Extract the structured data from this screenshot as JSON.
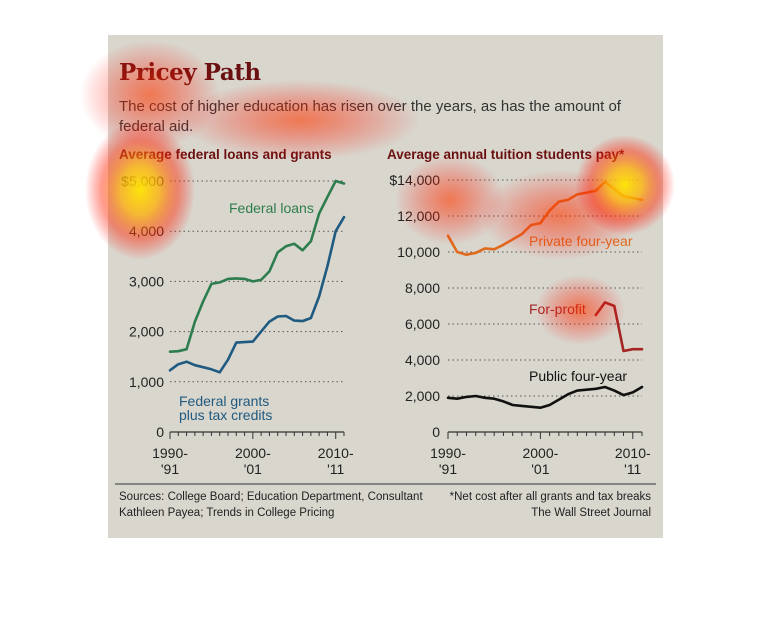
{
  "header": {
    "title": "Pricey Path",
    "subtitle": "The cost of higher education has risen over the years, as has the amount of federal aid."
  },
  "footer": {
    "sources": "Sources: College Board; Education Department, Consultant Kathleen Payea; Trends in College Pricing",
    "note": "*Net cost after all grants and tax breaks",
    "credit": "The Wall Street Journal"
  },
  "colors": {
    "background": "#d9d6cd",
    "title": "#6b1010",
    "federal_loans": "#2e7d4e",
    "federal_grants": "#1f5a80",
    "private_four_year": "#e06a1e",
    "for_profit": "#a52424",
    "public_four_year": "#111111"
  },
  "chart_data": [
    {
      "type": "line",
      "title": "Average federal loans and grants",
      "x_tick_labels": [
        [
          "1990-",
          "'91"
        ],
        [
          "2000-",
          "'01"
        ],
        [
          "2010-",
          "'11"
        ]
      ],
      "x_ticks": [
        1990,
        2000,
        2010
      ],
      "y_tick_labels": [
        "0",
        "1,000",
        "2,000",
        "3,000",
        "4,000",
        "$5,000"
      ],
      "y_ticks": [
        0,
        1000,
        2000,
        3000,
        4000,
        5000
      ],
      "xlim": [
        1990,
        2011
      ],
      "ylim": [
        0,
        5000
      ],
      "grid": "dotted horizontal",
      "series": [
        {
          "name": "Federal loans",
          "color_key": "federal_loans",
          "x": [
            1990,
            1991,
            1992,
            1993,
            1994,
            1995,
            1996,
            1997,
            1998,
            1999,
            2000,
            2001,
            2002,
            2003,
            2004,
            2005,
            2006,
            2007,
            2008,
            2009,
            2010,
            2011
          ],
          "values": [
            1600,
            1610,
            1650,
            2200,
            2600,
            2950,
            2980,
            3050,
            3060,
            3050,
            3000,
            3030,
            3200,
            3580,
            3700,
            3750,
            3620,
            3800,
            4350,
            4680,
            5000,
            4950
          ]
        },
        {
          "name": "Federal grants plus tax credits",
          "color_key": "federal_grants",
          "x": [
            1990,
            1991,
            1992,
            1993,
            1994,
            1995,
            1996,
            1997,
            1998,
            1999,
            2000,
            2001,
            2002,
            2003,
            2004,
            2005,
            2006,
            2007,
            2008,
            2009,
            2010,
            2011
          ],
          "values": [
            1230,
            1350,
            1400,
            1330,
            1290,
            1250,
            1190,
            1440,
            1780,
            1790,
            1800,
            2000,
            2200,
            2300,
            2310,
            2220,
            2210,
            2270,
            2700,
            3300,
            4000,
            4280
          ]
        }
      ]
    },
    {
      "type": "line",
      "title": "Average annual tuition students pay*",
      "x_tick_labels": [
        [
          "1990-",
          "'91"
        ],
        [
          "2000-",
          "'01"
        ],
        [
          "2010-",
          "'11"
        ]
      ],
      "x_ticks": [
        1990,
        2000,
        2010
      ],
      "y_tick_labels": [
        "0",
        "2,000",
        "4,000",
        "6,000",
        "8,000",
        "10,000",
        "12,000",
        "$14,000"
      ],
      "y_ticks": [
        0,
        2000,
        4000,
        6000,
        8000,
        10000,
        12000,
        14000
      ],
      "xlim": [
        1990,
        2011
      ],
      "ylim": [
        0,
        14000
      ],
      "grid": "dotted horizontal",
      "series": [
        {
          "name": "Private four-year",
          "color_key": "private_four_year",
          "x": [
            1990,
            1991,
            1992,
            1993,
            1994,
            1995,
            1996,
            1997,
            1998,
            1999,
            2000,
            2001,
            2002,
            2003,
            2004,
            2005,
            2006,
            2007,
            2008,
            2009,
            2010,
            2011
          ],
          "values": [
            10900,
            10000,
            9850,
            9950,
            10200,
            10150,
            10400,
            10700,
            11000,
            11500,
            11600,
            12300,
            12800,
            12900,
            13200,
            13300,
            13400,
            13900,
            13500,
            13100,
            13000,
            12900
          ]
        },
        {
          "name": "For-profit",
          "color_key": "for_profit",
          "x": [
            2006,
            2007,
            2008,
            2009,
            2010,
            2011
          ],
          "values": [
            6500,
            7200,
            7000,
            4500,
            4600,
            4600
          ]
        },
        {
          "name": "Public four-year",
          "color_key": "public_four_year",
          "x": [
            1990,
            1991,
            1992,
            1993,
            1994,
            1995,
            1996,
            1997,
            1998,
            1999,
            2000,
            2001,
            2002,
            2003,
            2004,
            2005,
            2006,
            2007,
            2008,
            2009,
            2010,
            2011
          ],
          "values": [
            1900,
            1850,
            1950,
            2000,
            1900,
            1850,
            1700,
            1500,
            1450,
            1400,
            1350,
            1500,
            1800,
            2100,
            2300,
            2350,
            2400,
            2500,
            2300,
            2050,
            2200,
            2500
          ]
        }
      ]
    }
  ]
}
